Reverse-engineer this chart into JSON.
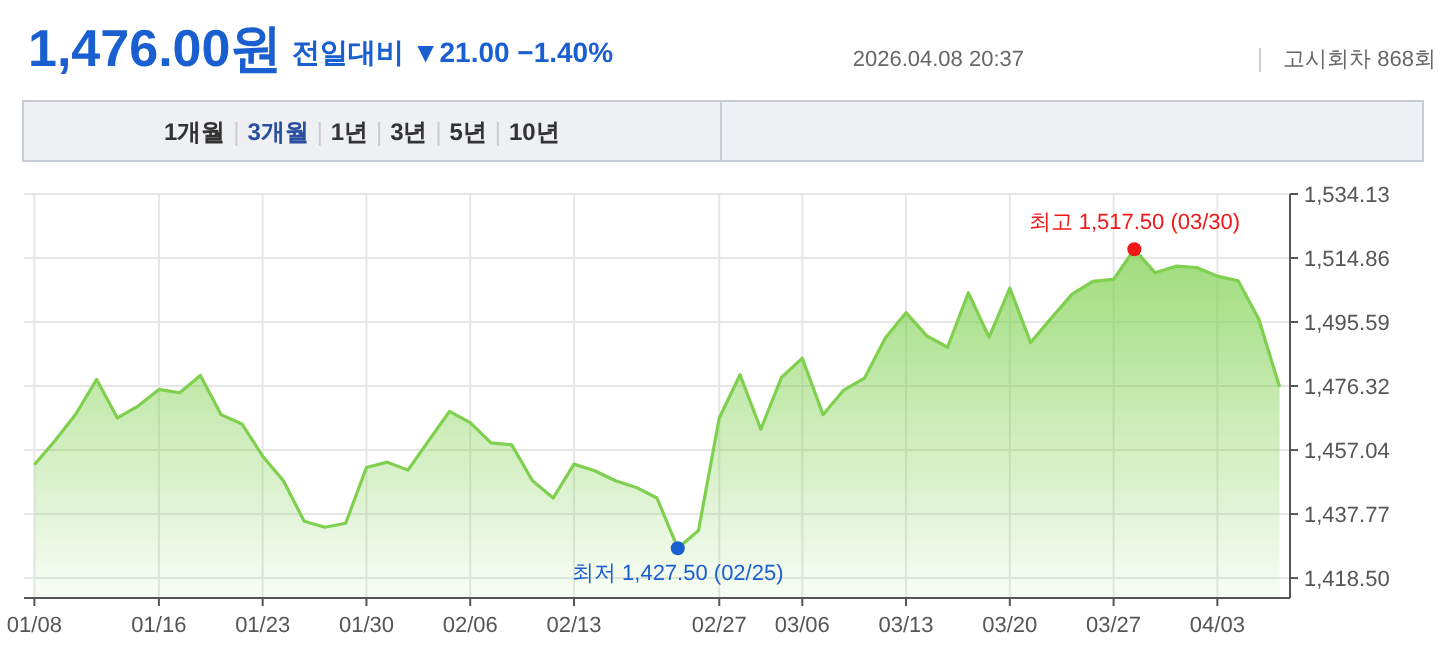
{
  "chart_data": {
    "type": "area",
    "title": "1,476.00원",
    "subtitle": "전일대비 ▼21.00 −1.40%",
    "categories": [
      "01/08",
      null,
      null,
      null,
      null,
      null,
      "01/16",
      null,
      null,
      null,
      null,
      "01/23",
      null,
      null,
      null,
      null,
      "01/30",
      null,
      null,
      null,
      null,
      "02/06",
      null,
      null,
      null,
      null,
      "02/13",
      null,
      null,
      null,
      null,
      null,
      null,
      "02/27",
      null,
      null,
      null,
      "03/06",
      null,
      null,
      null,
      null,
      "03/13",
      null,
      null,
      null,
      null,
      "03/20",
      null,
      null,
      null,
      null,
      "03/27",
      null,
      null,
      null,
      null,
      "04/03",
      null,
      null,
      null
    ],
    "values": [
      1452.6,
      1459.9,
      1467.9,
      1478.3,
      1466.7,
      1470.3,
      1475.3,
      1474.3,
      1479.5,
      1467.7,
      1464.9,
      1455.2,
      1447.8,
      1435.6,
      1433.8,
      1435.0,
      1451.8,
      1453.4,
      1451.0,
      1459.9,
      1468.7,
      1465.3,
      1459.2,
      1458.6,
      1447.8,
      1442.6,
      1452.8,
      1450.8,
      1447.8,
      1445.8,
      1442.6,
      1427.5,
      1432.8,
      1466.7,
      1479.7,
      1463.3,
      1478.9,
      1484.7,
      1467.7,
      1475.1,
      1478.7,
      1490.8,
      1498.4,
      1491.4,
      1488.0,
      1504.4,
      1491.0,
      1505.8,
      1489.4,
      1496.8,
      1504.0,
      1507.8,
      1508.4,
      1517.5,
      1510.4,
      1512.4,
      1512.0,
      1509.4,
      1508.0,
      1496.4,
      1476.0
    ],
    "color": "#7ed04e",
    "ylim": [
      1412.5,
      1534.13
    ],
    "yticks": [
      {
        "value": 1418.5,
        "label": "1,418.50"
      },
      {
        "value": 1437.77,
        "label": "1,437.77"
      },
      {
        "value": 1457.04,
        "label": "1,457.04"
      },
      {
        "value": 1476.32,
        "label": "1,476.32"
      },
      {
        "value": 1495.59,
        "label": "1,495.59"
      },
      {
        "value": 1514.86,
        "label": "1,514.86"
      },
      {
        "value": 1534.13,
        "label": "1,534.13"
      }
    ],
    "grid": true,
    "annotations": [
      "2026.04.08 20:37",
      "고시회차 868회",
      "1개월",
      "3개월",
      "1년",
      "3년",
      "5년",
      "10년",
      {
        "text": "최저 1,427.50 (02/25)",
        "y": 1427.5
      },
      {
        "text": "최고 1,517.50 (03/30)",
        "y": 1517.5
      }
    ]
  }
}
